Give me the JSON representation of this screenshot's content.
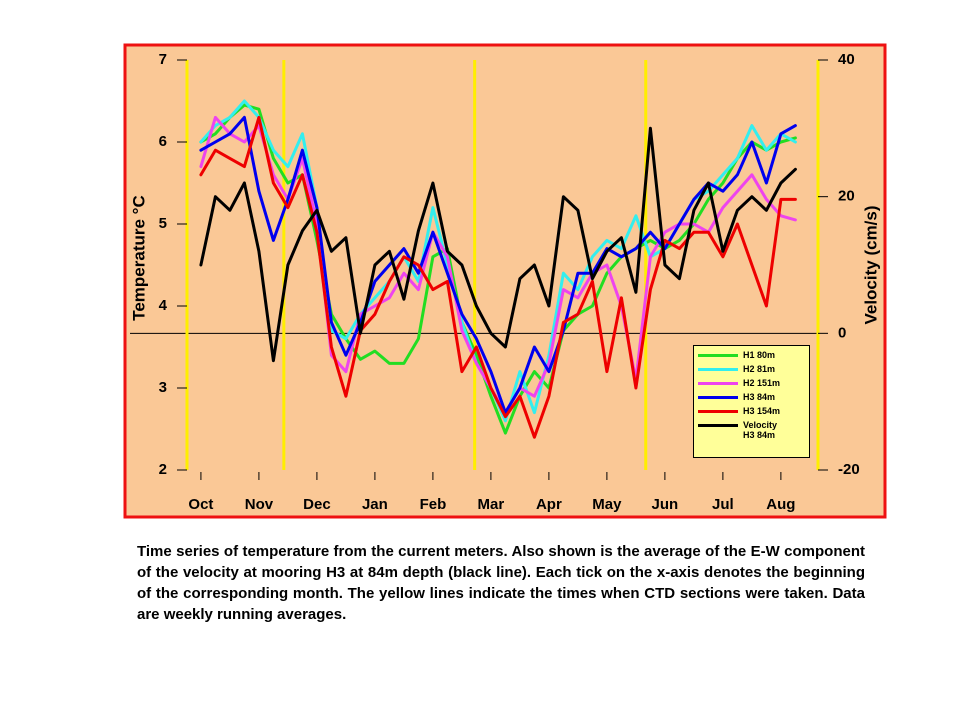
{
  "chart_data": {
    "type": "line",
    "y_label": "Temperature °C",
    "y2_label": "Velocity (cm/s)",
    "caption": "Time series of temperature from the current meters. Also shown is the average of the E-W component of the velocity at mooring H3 at 84m depth (black line). Each tick on the x-axis denotes the beginning of the corresponding month. The yellow lines indicate the times when CTD sections were taken. Data are weekly running averages.",
    "xlim": [
      -0.24,
      10.64
    ],
    "xticks": [
      {
        "value": 0,
        "label": "Oct"
      },
      {
        "value": 1,
        "label": "Nov"
      },
      {
        "value": 2,
        "label": "Dec"
      },
      {
        "value": 3,
        "label": "Jan"
      },
      {
        "value": 4,
        "label": "Feb"
      },
      {
        "value": 5,
        "label": "Mar"
      },
      {
        "value": 6,
        "label": "Apr"
      },
      {
        "value": 7,
        "label": "May"
      },
      {
        "value": 8,
        "label": "Jun"
      },
      {
        "value": 9,
        "label": "Jul"
      },
      {
        "value": 10,
        "label": "Aug"
      }
    ],
    "ylim": [
      2,
      7
    ],
    "yticks": [
      2,
      3,
      4,
      5,
      6,
      7
    ],
    "y2lim": [
      -20,
      40
    ],
    "y2ticks": [
      -20,
      0,
      20,
      40
    ],
    "vertical_lines": [
      1.43,
      4.72,
      7.67
    ],
    "x": [
      0,
      0.25,
      0.5,
      0.75,
      1,
      1.25,
      1.5,
      1.75,
      2,
      2.25,
      2.5,
      2.75,
      3,
      3.25,
      3.5,
      3.75,
      4,
      4.25,
      4.5,
      4.75,
      5,
      5.25,
      5.5,
      5.75,
      6,
      6.25,
      6.5,
      6.75,
      7,
      7.25,
      7.5,
      7.75,
      8,
      8.25,
      8.5,
      8.75,
      9,
      9.25,
      9.5,
      9.75,
      10,
      10.25
    ],
    "series": [
      {
        "name": "H1 80m",
        "color": "#22dd22",
        "values": [
          6.0,
          6.1,
          6.3,
          6.45,
          6.4,
          5.8,
          5.5,
          5.6,
          4.8,
          3.9,
          3.6,
          3.35,
          3.45,
          3.3,
          3.3,
          3.6,
          4.6,
          4.7,
          3.8,
          3.4,
          2.9,
          2.45,
          2.9,
          3.2,
          3.0,
          3.7,
          3.9,
          4.0,
          4.4,
          4.6,
          4.7,
          4.8,
          4.7,
          4.8,
          5.0,
          5.3,
          5.5,
          5.8,
          6.0,
          5.9,
          6.0,
          6.05
        ]
      },
      {
        "name": "H2 81m",
        "color": "#33eeee",
        "values": [
          6.0,
          6.2,
          6.3,
          6.5,
          6.3,
          5.9,
          5.7,
          6.1,
          5.2,
          3.7,
          3.6,
          3.9,
          4.1,
          4.3,
          4.6,
          4.3,
          5.2,
          4.5,
          3.8,
          3.3,
          3.0,
          2.6,
          3.2,
          2.7,
          3.4,
          4.4,
          4.2,
          4.6,
          4.8,
          4.7,
          5.1,
          4.6,
          4.7,
          5.0,
          5.3,
          5.4,
          5.6,
          5.8,
          6.2,
          5.9,
          6.1,
          6.0
        ]
      },
      {
        "name": "H2 151m",
        "color": "#ee44ee",
        "values": [
          5.7,
          6.3,
          6.1,
          6.0,
          6.2,
          5.6,
          5.3,
          5.8,
          5.0,
          3.4,
          3.2,
          3.9,
          4.0,
          4.1,
          4.4,
          4.2,
          4.9,
          4.6,
          3.7,
          3.3,
          3.0,
          2.7,
          3.0,
          2.9,
          3.3,
          4.2,
          4.1,
          4.4,
          4.5,
          4.0,
          3.1,
          4.6,
          4.9,
          5.0,
          5.0,
          4.9,
          5.2,
          5.4,
          5.6,
          5.3,
          5.1,
          5.05
        ]
      },
      {
        "name": "H3 84m",
        "color": "#0000ee",
        "values": [
          5.9,
          6.0,
          6.1,
          6.3,
          5.4,
          4.8,
          5.3,
          5.9,
          5.2,
          3.8,
          3.4,
          3.8,
          4.3,
          4.5,
          4.7,
          4.4,
          4.9,
          4.4,
          3.9,
          3.6,
          3.2,
          2.7,
          3.0,
          3.5,
          3.2,
          3.7,
          4.4,
          4.4,
          4.7,
          4.6,
          4.7,
          4.9,
          4.7,
          5.0,
          5.3,
          5.5,
          5.4,
          5.6,
          6.0,
          5.5,
          6.1,
          6.2
        ]
      },
      {
        "name": "H3 154m",
        "color": "#ee0000",
        "values": [
          5.6,
          5.9,
          5.8,
          5.7,
          6.3,
          5.5,
          5.2,
          5.6,
          4.9,
          3.5,
          2.9,
          3.7,
          3.9,
          4.3,
          4.6,
          4.5,
          4.2,
          4.3,
          3.2,
          3.5,
          3.0,
          2.65,
          2.9,
          2.4,
          2.9,
          3.8,
          3.9,
          4.3,
          3.2,
          4.1,
          3.0,
          4.2,
          4.8,
          4.7,
          4.9,
          4.9,
          4.6,
          5.0,
          4.5,
          4.0,
          5.3,
          5.3
        ]
      },
      {
        "name": "Velocity H3 84m",
        "color": "#000000",
        "axis": "y2",
        "values": [
          10,
          20,
          18,
          22,
          12,
          -4,
          10,
          15,
          18,
          12,
          14,
          0,
          10,
          12,
          5,
          15,
          22,
          12,
          10,
          4,
          0,
          -2,
          8,
          10,
          4,
          20,
          18,
          8,
          12,
          14,
          6,
          30,
          10,
          8,
          18,
          22,
          12,
          18,
          20,
          18,
          22,
          24
        ]
      }
    ]
  }
}
